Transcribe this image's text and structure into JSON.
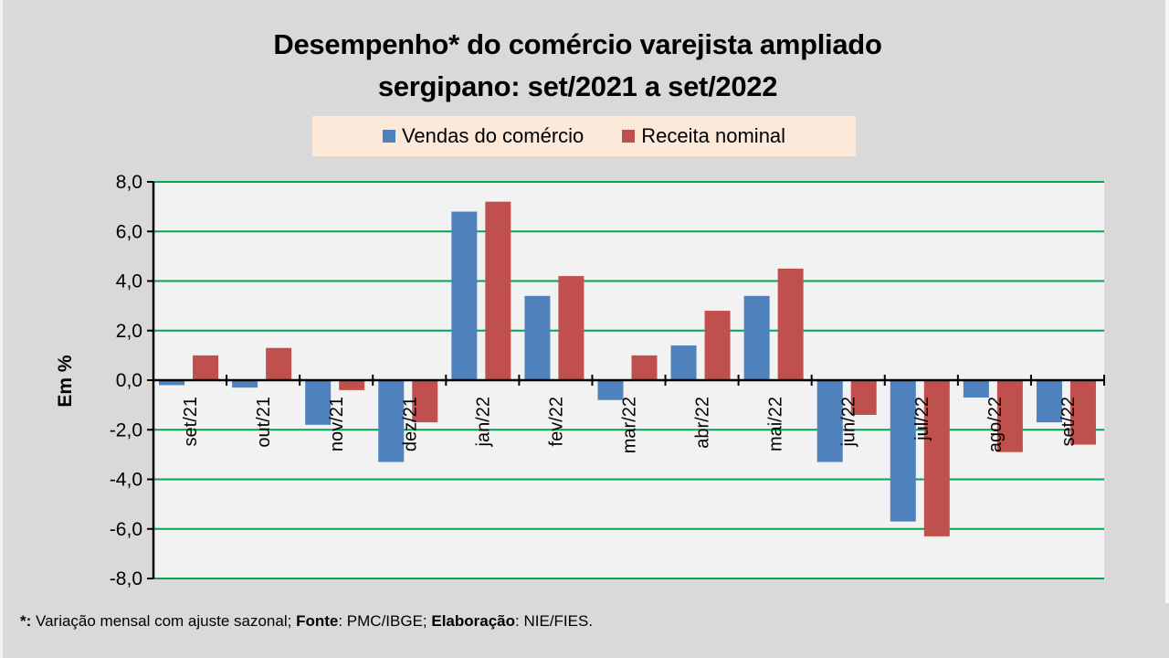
{
  "chart_data": {
    "type": "bar",
    "title": "Desempenho* do comércio varejista ampliado sergipano: set/2021 a set/2022",
    "title_lines": [
      "Desempenho* do comércio varejista ampliado",
      "sergipano: set/2021 a set/2022"
    ],
    "xlabel": "",
    "ylabel": "Em %",
    "ylim": [
      -8,
      8
    ],
    "yticks": [
      8,
      6,
      4,
      2,
      0,
      -2,
      -4,
      -6,
      -8
    ],
    "ytick_labels": [
      "8,0",
      "6,0",
      "4,0",
      "2,0",
      "0,0",
      "-2,0",
      "-4,0",
      "-6,0",
      "-8,0"
    ],
    "grid": true,
    "legend_position": "top",
    "categories": [
      "set/21",
      "out/21",
      "nov/21",
      "dez/21",
      "jan/22",
      "fev/22",
      "mar/22",
      "abr/22",
      "mai/22",
      "jun/22",
      "jul/22",
      "ago/22",
      "set/22"
    ],
    "series": [
      {
        "name": "Vendas do comércio",
        "color": "#4f81bd",
        "values": [
          -0.2,
          -0.3,
          -1.8,
          -3.3,
          6.8,
          3.4,
          -0.8,
          1.4,
          3.4,
          -3.3,
          -5.7,
          -0.7,
          -1.7
        ]
      },
      {
        "name": "Receita nominal",
        "color": "#c0504d",
        "values": [
          1.0,
          1.3,
          -0.4,
          -1.7,
          7.2,
          4.2,
          1.0,
          2.8,
          4.5,
          -1.4,
          -6.3,
          -2.9,
          -2.6
        ]
      }
    ],
    "colors": {
      "background": "#d9d9d9",
      "plot_background": "#f2f2f2",
      "gridline": "#00a651",
      "legend_background": "#fde9d9"
    }
  },
  "footer": {
    "asterisk": "*:",
    "note": " Variação mensal com ajuste sazonal; ",
    "source_label": "Fonte",
    "source": ": PMC/IBGE; ",
    "author_label": "Elaboração",
    "author": ": NIE/FIES."
  }
}
